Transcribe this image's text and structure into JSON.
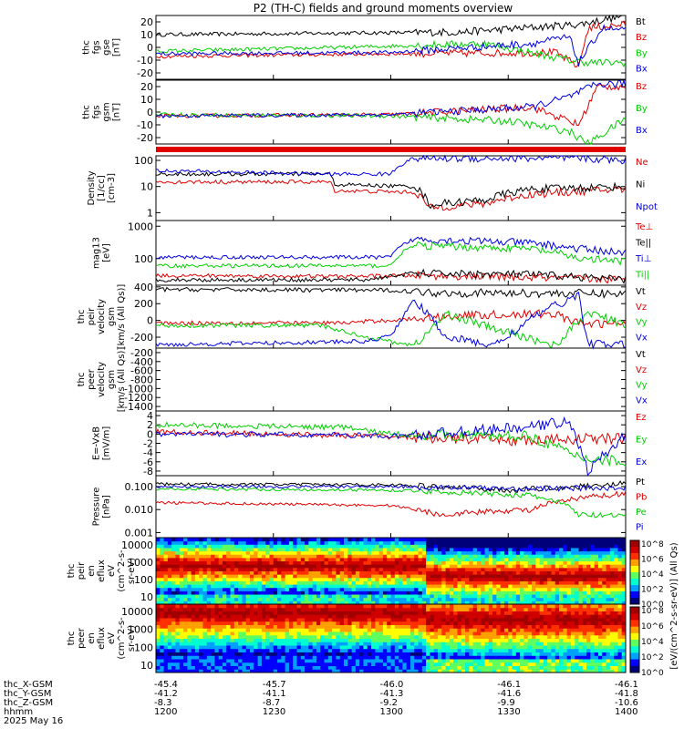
{
  "title": "P2 (TH-C) fields and ground moments overview",
  "colors": {
    "black": "#000000",
    "red": "#e00000",
    "green": "#00d000",
    "blue": "#0000e0"
  },
  "chart_data": [
    {
      "type": "line",
      "id": "fgs_gse",
      "ylabel": [
        "thc",
        "fgs",
        "gse",
        "[nT]"
      ],
      "yticks": [
        "20",
        "10",
        "0",
        "-10",
        "-20"
      ],
      "ylim": [
        -25,
        25
      ],
      "series": [
        {
          "name": "Bt",
          "color": "black"
        },
        {
          "name": "Bz",
          "color": "red"
        },
        {
          "name": "By",
          "color": "green"
        },
        {
          "name": "Bx",
          "color": "blue"
        }
      ]
    },
    {
      "type": "line",
      "id": "fgs_gsm",
      "ylabel": [
        "thc",
        "fgs",
        "gsm",
        "[nT]"
      ],
      "yticks": [
        "20",
        "10",
        "0",
        "-10",
        "-20"
      ],
      "ylim": [
        -25,
        25
      ],
      "series": [
        {
          "name": "Bz",
          "color": "red"
        },
        {
          "name": "By",
          "color": "green"
        },
        {
          "name": "Bx",
          "color": "blue"
        }
      ]
    },
    {
      "type": "line",
      "id": "density",
      "ylabel": [
        "Density",
        "[1/cc]",
        "[cm-3]"
      ],
      "yticks": [
        "100",
        "10",
        "1"
      ],
      "ylim": [
        0.5,
        150
      ],
      "yscale": "log",
      "series": [
        {
          "name": "Ne",
          "color": "red"
        },
        {
          "name": "Ni",
          "color": "black"
        },
        {
          "name": "Npot",
          "color": "blue"
        }
      ]
    },
    {
      "type": "line",
      "id": "temperature",
      "ylabel": [
        "mag13",
        "[eV]"
      ],
      "yticks": [
        "1000",
        "100"
      ],
      "ylim": [
        15,
        1500
      ],
      "yscale": "log",
      "series": [
        {
          "name": "Te⊥",
          "color": "red"
        },
        {
          "name": "Te||",
          "color": "black"
        },
        {
          "name": "Ti⊥",
          "color": "blue"
        },
        {
          "name": "Ti||",
          "color": "green"
        }
      ]
    },
    {
      "type": "line",
      "id": "peir_velocity",
      "ylabel": [
        "thc",
        "peir",
        "velocity",
        "gsm",
        "[km/s (All Qs)]"
      ],
      "yticks": [
        "400",
        "200",
        "0",
        "-200"
      ],
      "ylim": [
        -330,
        420
      ],
      "series": [
        {
          "name": "Vt",
          "color": "black"
        },
        {
          "name": "Vz",
          "color": "red"
        },
        {
          "name": "Vy",
          "color": "green"
        },
        {
          "name": "Vx",
          "color": "blue"
        }
      ]
    },
    {
      "type": "line",
      "id": "peer_velocity",
      "ylabel": [
        "thc",
        "peer",
        "velocity",
        "gsm",
        "[km/s (All Qs)]"
      ],
      "yticks": [
        "-200",
        "-400",
        "-600",
        "-800",
        "-1000",
        "-1200",
        "-1400"
      ],
      "ylim": [
        -1500,
        -100
      ],
      "series": [
        {
          "name": "Vt",
          "color": "black"
        },
        {
          "name": "Vz",
          "color": "red"
        },
        {
          "name": "Vy",
          "color": "green"
        },
        {
          "name": "Vx",
          "color": "blue"
        }
      ]
    },
    {
      "type": "line",
      "id": "efield",
      "ylabel": [
        "E=-VxB",
        "[mV/m]"
      ],
      "yticks": [
        "4",
        "2",
        "0",
        "-2",
        "-4",
        "-6",
        "-8"
      ],
      "ylim": [
        -9,
        5
      ],
      "series": [
        {
          "name": "Ez",
          "color": "red"
        },
        {
          "name": "Ey",
          "color": "green"
        },
        {
          "name": "Ex",
          "color": "blue"
        }
      ]
    },
    {
      "type": "line",
      "id": "pressure",
      "ylabel": [
        "Pressure",
        "[nPa]"
      ],
      "yticks": [
        "0.100",
        "0.010",
        "0.001"
      ],
      "ylim": [
        0.0006,
        0.3
      ],
      "yscale": "log",
      "series": [
        {
          "name": "Pt",
          "color": "black"
        },
        {
          "name": "Pb",
          "color": "red"
        },
        {
          "name": "Pe",
          "color": "green"
        },
        {
          "name": "Pi",
          "color": "blue"
        }
      ]
    },
    {
      "type": "heatmap",
      "id": "peir_spec",
      "ylabel": [
        "thc",
        "peir",
        "en",
        "eflux",
        "eV",
        "(cm^2-s-",
        "sr-eV)"
      ],
      "yticks": [
        "10000",
        "1000",
        "100",
        "10"
      ],
      "yscale": "log"
    },
    {
      "type": "heatmap",
      "id": "peer_spec",
      "ylabel": [
        "thc",
        "peer",
        "en",
        "eflux",
        "eV",
        "(cm^2-s-",
        "sr-eV)"
      ],
      "yticks": [
        "10000",
        "1000",
        "100",
        "10"
      ],
      "yscale": "log"
    }
  ],
  "colorbar": {
    "label": "[eV/(cm^2-s-sr-eV)] (All Qs)",
    "ticks": [
      "10^8",
      "10^6",
      "10^4",
      "10^2",
      "10^0"
    ]
  },
  "xaxis": {
    "labels": [
      "thc_X-GSM",
      "thc_Y-GSM",
      "thc_Z-GSM",
      "hhmm",
      "2025 May 16"
    ],
    "ticks": [
      {
        "x": "-45.4",
        "y": "-41.2",
        "z": "-8.3",
        "t": "1200"
      },
      {
        "x": "-45.7",
        "y": "-41.1",
        "z": "-8.7",
        "t": "1230"
      },
      {
        "x": "-46.0",
        "y": "-41.3",
        "z": "-9.2",
        "t": "1300"
      },
      {
        "x": "-46.1",
        "y": "-41.6",
        "z": "-9.9",
        "t": "1330"
      },
      {
        "x": "-46.1",
        "y": "-41.8",
        "z": "-10.6",
        "t": "1400"
      }
    ]
  },
  "flag_bar": {
    "color": "red"
  }
}
